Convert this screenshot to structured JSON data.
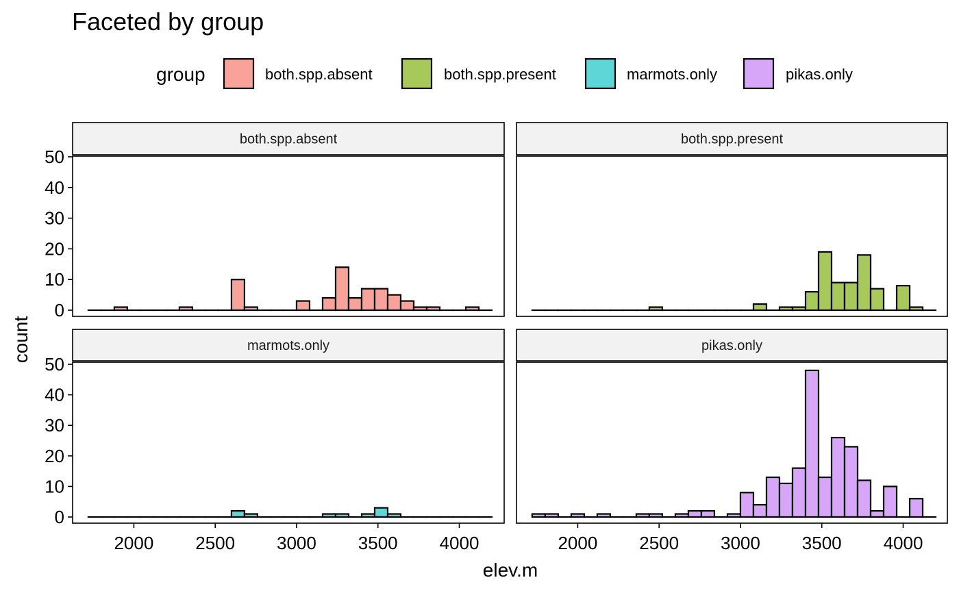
{
  "chart_data": {
    "type": "bar",
    "title": "Faceted by group",
    "xlabel": "elev.m",
    "ylabel": "count",
    "legend": {
      "title": "group",
      "position": "top"
    },
    "xlim": [
      1700,
      4200
    ],
    "ylim": [
      0,
      50
    ],
    "x_ticks": [
      2000,
      2500,
      3000,
      3500,
      4000
    ],
    "y_ticks": [
      0,
      10,
      20,
      30,
      40,
      50
    ],
    "bin_width": 80,
    "bin_centers": [
      1760,
      1840,
      1920,
      2000,
      2080,
      2160,
      2240,
      2320,
      2400,
      2480,
      2560,
      2640,
      2720,
      2800,
      2880,
      2960,
      3040,
      3120,
      3200,
      3280,
      3360,
      3440,
      3520,
      3600,
      3680,
      3760,
      3840,
      3920,
      4000,
      4080,
      4160
    ],
    "series": [
      {
        "name": "both.spp.absent",
        "color": "#F8A29A",
        "values": [
          0,
          0,
          1,
          0,
          0,
          0,
          0,
          1,
          0,
          0,
          0,
          10,
          1,
          0,
          0,
          0,
          3,
          0,
          4,
          14,
          4,
          7,
          7,
          5,
          3,
          1,
          1,
          0,
          0,
          1,
          0
        ]
      },
      {
        "name": "both.spp.present",
        "color": "#A7C95A",
        "values": [
          0,
          0,
          0,
          0,
          0,
          0,
          0,
          0,
          0,
          1,
          0,
          0,
          0,
          0,
          0,
          0,
          0,
          2,
          0,
          1,
          1,
          6,
          19,
          9,
          9,
          18,
          7,
          0,
          8,
          1,
          0
        ]
      },
      {
        "name": "marmots.only",
        "color": "#5CD6D6",
        "values": [
          0,
          0,
          0,
          0,
          0,
          0,
          0,
          0,
          0,
          0,
          0,
          2,
          1,
          0,
          0,
          0,
          0,
          0,
          1,
          1,
          0,
          1,
          3,
          1,
          0,
          0,
          0,
          0,
          0,
          0,
          0
        ]
      },
      {
        "name": "pikas.only",
        "color": "#D8A6F9",
        "values": [
          1,
          1,
          0,
          1,
          0,
          1,
          0,
          0,
          1,
          1,
          0,
          1,
          2,
          2,
          0,
          1,
          8,
          4,
          13,
          11,
          16,
          48,
          13,
          26,
          23,
          12,
          2,
          10,
          0,
          6,
          0
        ]
      }
    ]
  }
}
